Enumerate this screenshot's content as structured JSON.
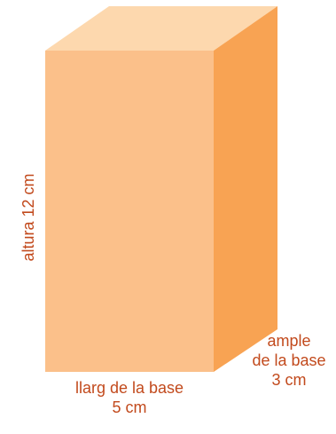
{
  "diagram": {
    "colors": {
      "front_face": "#fbc08a",
      "top_face": "#fdd8ae",
      "side_face": "#f8a353",
      "label_text": "#c24a1d"
    },
    "labels": {
      "height": "altura 12 cm",
      "length_line1": "llarg de la base",
      "length_line2": "5 cm",
      "width_line1": "ample",
      "width_line2": "de la base",
      "width_line3": "3 cm"
    }
  }
}
